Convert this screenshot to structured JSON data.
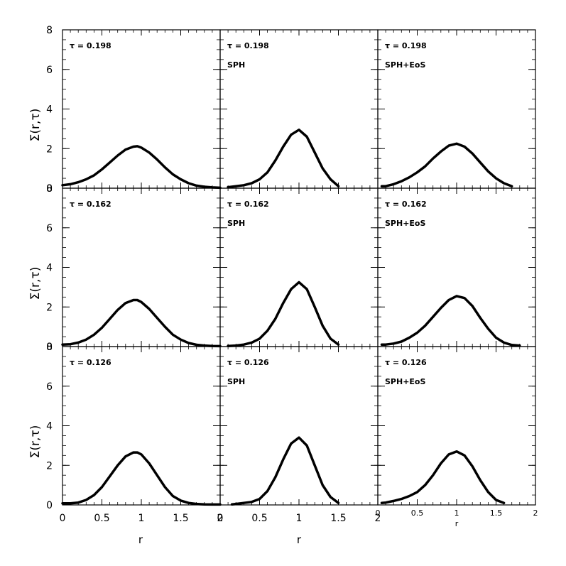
{
  "figure": {
    "ylabel": "Σ(r,τ)",
    "xlabel": "r",
    "colors": {
      "axes": "#000000",
      "curve": "#000000",
      "background": "#ffffff"
    }
  },
  "chart_data": [
    {
      "type": "line",
      "row": 0,
      "col": 0,
      "tau_label": "τ = 0.198",
      "method_label": "",
      "xlim": [
        0,
        2
      ],
      "ylim": [
        0,
        8
      ],
      "xticks": [
        "0",
        "0.5",
        "1",
        "1.5",
        "2"
      ],
      "yticks": [
        "0",
        "2",
        "4",
        "6",
        "8"
      ],
      "series": [
        {
          "x": [
            0,
            0.1,
            0.2,
            0.3,
            0.4,
            0.5,
            0.6,
            0.7,
            0.8,
            0.9,
            0.95,
            1.0,
            1.1,
            1.2,
            1.3,
            1.4,
            1.5,
            1.6,
            1.7,
            1.8,
            1.9,
            2.0
          ],
          "y": [
            0.15,
            0.2,
            0.3,
            0.45,
            0.65,
            0.95,
            1.3,
            1.65,
            1.95,
            2.1,
            2.12,
            2.05,
            1.8,
            1.45,
            1.05,
            0.7,
            0.45,
            0.25,
            0.13,
            0.07,
            0.04,
            0.02
          ]
        }
      ]
    },
    {
      "type": "line",
      "row": 0,
      "col": 1,
      "tau_label": "τ = 0.198",
      "method_label": "SPH",
      "xlim": [
        0,
        2
      ],
      "ylim": [
        0,
        8
      ],
      "xticks": [
        "0",
        "0.5",
        "1",
        "1.5",
        "2"
      ],
      "yticks": [
        "0",
        "2",
        "4",
        "6",
        "8"
      ],
      "series": [
        {
          "x": [
            0.1,
            0.2,
            0.3,
            0.4,
            0.5,
            0.6,
            0.7,
            0.8,
            0.9,
            1.0,
            1.1,
            1.2,
            1.3,
            1.4,
            1.5
          ],
          "y": [
            0.05,
            0.1,
            0.15,
            0.25,
            0.45,
            0.8,
            1.4,
            2.1,
            2.7,
            2.95,
            2.6,
            1.8,
            1.0,
            0.45,
            0.1
          ]
        }
      ]
    },
    {
      "type": "line",
      "row": 0,
      "col": 2,
      "tau_label": "τ = 0.198",
      "method_label": "SPH+EoS",
      "xlim": [
        0,
        2
      ],
      "ylim": [
        0,
        8
      ],
      "xticks": [
        "0",
        "0.5",
        "1",
        "1.5",
        "2"
      ],
      "yticks": [
        "0",
        "2",
        "4",
        "6",
        "8"
      ],
      "series": [
        {
          "x": [
            0.05,
            0.1,
            0.2,
            0.3,
            0.4,
            0.5,
            0.6,
            0.7,
            0.8,
            0.9,
            1.0,
            1.1,
            1.2,
            1.3,
            1.4,
            1.5,
            1.6,
            1.7
          ],
          "y": [
            0.1,
            0.1,
            0.2,
            0.35,
            0.55,
            0.8,
            1.1,
            1.5,
            1.85,
            2.15,
            2.25,
            2.1,
            1.75,
            1.3,
            0.85,
            0.5,
            0.25,
            0.1
          ]
        }
      ]
    },
    {
      "type": "line",
      "row": 1,
      "col": 0,
      "tau_label": "τ = 0.162",
      "method_label": "",
      "xlim": [
        0,
        2
      ],
      "ylim": [
        0,
        8
      ],
      "xticks": [
        "0",
        "0.5",
        "1",
        "1.5",
        "2"
      ],
      "yticks": [
        "0",
        "2",
        "4",
        "6",
        "8"
      ],
      "series": [
        {
          "x": [
            0,
            0.1,
            0.2,
            0.3,
            0.4,
            0.5,
            0.6,
            0.7,
            0.8,
            0.9,
            0.95,
            1.0,
            1.1,
            1.2,
            1.3,
            1.4,
            1.5,
            1.6,
            1.7,
            1.8,
            1.9,
            2.0
          ],
          "y": [
            0.1,
            0.12,
            0.2,
            0.35,
            0.6,
            0.95,
            1.4,
            1.85,
            2.2,
            2.35,
            2.35,
            2.25,
            1.9,
            1.45,
            1.0,
            0.6,
            0.35,
            0.18,
            0.09,
            0.05,
            0.03,
            0.02
          ]
        }
      ]
    },
    {
      "type": "line",
      "row": 1,
      "col": 1,
      "tau_label": "τ = 0.162",
      "method_label": "SPH",
      "xlim": [
        0,
        2
      ],
      "ylim": [
        0,
        8
      ],
      "xticks": [
        "0",
        "0.5",
        "1",
        "1.5",
        "2"
      ],
      "yticks": [
        "0",
        "2",
        "4",
        "6",
        "8"
      ],
      "series": [
        {
          "x": [
            0.1,
            0.2,
            0.3,
            0.4,
            0.5,
            0.6,
            0.7,
            0.8,
            0.9,
            1.0,
            1.1,
            1.2,
            1.3,
            1.4,
            1.5
          ],
          "y": [
            0.03,
            0.05,
            0.1,
            0.2,
            0.4,
            0.8,
            1.4,
            2.2,
            2.9,
            3.25,
            2.9,
            2.0,
            1.05,
            0.4,
            0.1
          ]
        }
      ]
    },
    {
      "type": "line",
      "row": 1,
      "col": 2,
      "tau_label": "τ = 0.162",
      "method_label": "SPH+EoS",
      "xlim": [
        0,
        2
      ],
      "ylim": [
        0,
        8
      ],
      "xticks": [
        "0",
        "0.5",
        "1",
        "1.5",
        "2"
      ],
      "yticks": [
        "0",
        "2",
        "4",
        "6",
        "8"
      ],
      "series": [
        {
          "x": [
            0.05,
            0.1,
            0.2,
            0.3,
            0.4,
            0.5,
            0.6,
            0.7,
            0.8,
            0.9,
            1.0,
            1.1,
            1.2,
            1.3,
            1.4,
            1.5,
            1.6,
            1.7,
            1.8
          ],
          "y": [
            0.1,
            0.1,
            0.15,
            0.25,
            0.45,
            0.7,
            1.05,
            1.5,
            1.95,
            2.35,
            2.55,
            2.45,
            2.05,
            1.45,
            0.9,
            0.45,
            0.2,
            0.08,
            0.05
          ]
        }
      ]
    },
    {
      "type": "line",
      "row": 2,
      "col": 0,
      "tau_label": "τ = 0.126",
      "method_label": "",
      "xlim": [
        0,
        2
      ],
      "ylim": [
        0,
        8
      ],
      "xticks": [
        "0",
        "0.5",
        "1",
        "1.5",
        "2"
      ],
      "yticks": [
        "0",
        "2",
        "4",
        "6",
        "8"
      ],
      "series": [
        {
          "x": [
            0,
            0.1,
            0.2,
            0.3,
            0.4,
            0.5,
            0.6,
            0.7,
            0.8,
            0.9,
            0.95,
            1.0,
            1.1,
            1.2,
            1.3,
            1.4,
            1.5,
            1.6,
            1.7,
            1.8,
            1.9,
            2.0
          ],
          "y": [
            0.08,
            0.08,
            0.12,
            0.25,
            0.5,
            0.9,
            1.45,
            2.0,
            2.45,
            2.65,
            2.65,
            2.55,
            2.1,
            1.5,
            0.9,
            0.45,
            0.22,
            0.1,
            0.05,
            0.03,
            0.02,
            0.02
          ]
        }
      ]
    },
    {
      "type": "line",
      "row": 2,
      "col": 1,
      "tau_label": "τ = 0.126",
      "method_label": "SPH",
      "xlim": [
        0,
        2
      ],
      "ylim": [
        0,
        8
      ],
      "xticks": [
        "0",
        "0.5",
        "1",
        "1.5",
        "2"
      ],
      "yticks": [
        "0",
        "2",
        "4",
        "6",
        "8"
      ],
      "series": [
        {
          "x": [
            0.15,
            0.2,
            0.3,
            0.4,
            0.5,
            0.6,
            0.7,
            0.8,
            0.9,
            1.0,
            1.1,
            1.2,
            1.3,
            1.4,
            1.5
          ],
          "y": [
            0.03,
            0.05,
            0.1,
            0.15,
            0.3,
            0.7,
            1.4,
            2.3,
            3.1,
            3.4,
            3.0,
            2.0,
            1.0,
            0.4,
            0.1
          ]
        }
      ]
    },
    {
      "type": "line",
      "row": 2,
      "col": 2,
      "tau_label": "τ = 0.126",
      "method_label": "SPH+EoS",
      "xlim": [
        0,
        2
      ],
      "ylim": [
        0,
        8
      ],
      "xticks": [
        "0",
        "0.5",
        "1",
        "1.5",
        "2"
      ],
      "yticks": [
        "0",
        "2",
        "4",
        "6",
        "8"
      ],
      "series": [
        {
          "x": [
            0.05,
            0.1,
            0.2,
            0.3,
            0.4,
            0.5,
            0.6,
            0.7,
            0.8,
            0.9,
            1.0,
            1.1,
            1.2,
            1.3,
            1.4,
            1.5,
            1.6
          ],
          "y": [
            0.1,
            0.12,
            0.2,
            0.3,
            0.45,
            0.65,
            1.0,
            1.5,
            2.1,
            2.55,
            2.7,
            2.5,
            1.95,
            1.25,
            0.65,
            0.25,
            0.1
          ]
        }
      ]
    }
  ]
}
